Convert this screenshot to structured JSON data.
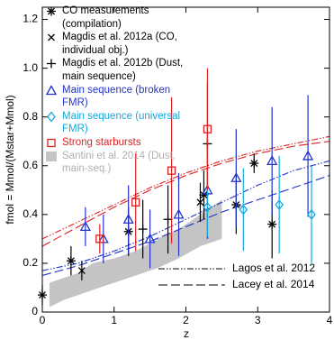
{
  "chart_data": {
    "type": "scatter",
    "x_label": "z",
    "y_label": "fmol = Mmol/(Mstar+Mmol)",
    "xlim": [
      0,
      4
    ],
    "ylim": [
      0,
      1.25
    ],
    "xticks": [
      0,
      1,
      2,
      3,
      4
    ],
    "yticks": [
      0,
      0.2,
      0.4,
      0.6,
      0.8,
      {
        "value": 1,
        "label": "1.0"
      },
      1.2
    ],
    "series": [
      {
        "name": "CO measurements (compilation)",
        "color": "#000000",
        "marker": "asterisk",
        "x": [
          0.0,
          0.4,
          1.2,
          2.25,
          2.7,
          2.95,
          3.2
        ],
        "values": [
          0.07,
          0.21,
          0.33,
          0.48,
          0.44,
          0.61,
          0.36
        ],
        "errors": [
          0.04,
          0.06,
          0.1,
          0.1,
          0.12,
          0.04,
          0.14
        ]
      },
      {
        "name": "Magdis et al. 2012a (CO, individual obj.)",
        "color": "#000000",
        "marker": "x",
        "x": [
          0.55,
          2.2
        ],
        "values": [
          0.17,
          0.45
        ],
        "errors": [
          0.04,
          0.08
        ]
      },
      {
        "name": "Magdis et al. 2012b (Dust, main sequence)",
        "color": "#000000",
        "marker": "plus",
        "x": [
          1.4,
          1.75,
          2.3
        ],
        "values": [
          0.34,
          0.38,
          0.69
        ],
        "errors": [
          0.12,
          0.14,
          0.25
        ]
      },
      {
        "name": "Main sequence (broken FMR)",
        "color": "#2233cc",
        "marker": "triangle",
        "x": [
          0.6,
          0.85,
          1.2,
          1.5,
          1.9,
          2.3,
          2.7,
          3.2,
          3.7
        ],
        "values": [
          0.35,
          0.3,
          0.38,
          0.3,
          0.4,
          0.5,
          0.55,
          0.62,
          0.64
        ],
        "errors": [
          0.08,
          0.1,
          0.14,
          0.12,
          0.17,
          0.2,
          0.2,
          0.22,
          0.25
        ]
      },
      {
        "name": "Main sequence (universal FMR)",
        "color": "#11aadd",
        "marker": "diamond",
        "x": [
          2.3,
          2.8,
          3.3,
          3.75
        ],
        "values": [
          0.43,
          0.42,
          0.44,
          0.4
        ],
        "errors": [
          0.12,
          0.17,
          0.2,
          0.2
        ]
      },
      {
        "name": "Strong starbursts",
        "color": "#dd2222",
        "marker": "square",
        "x": [
          0.8,
          1.3,
          1.8,
          2.3
        ],
        "values": [
          0.3,
          0.45,
          0.58,
          0.75
        ],
        "errors": [
          0.06,
          0.2,
          0.3,
          0.25
        ]
      }
    ],
    "area": {
      "name": "Santini et al. 2014 (Dust, main-seq.)",
      "color": "#c4c4c4",
      "x": [
        0.1,
        0.3,
        0.5,
        0.7,
        1.0,
        1.3,
        1.6,
        1.9,
        2.2,
        2.5
      ],
      "lower": [
        0.02,
        0.05,
        0.07,
        0.09,
        0.12,
        0.15,
        0.18,
        0.22,
        0.27,
        0.3
      ],
      "upper": [
        0.12,
        0.14,
        0.16,
        0.2,
        0.22,
        0.25,
        0.3,
        0.34,
        0.4,
        0.46
      ]
    },
    "model_x": [
      0,
      0.5,
      1,
      1.5,
      2,
      2.5,
      3,
      3.5,
      4
    ],
    "models": [
      {
        "name": "Lagos et al. 2012",
        "dash": "dash-dot-dot",
        "curves": [
          {
            "color": "#dd2222",
            "values": [
              0.3,
              0.37,
              0.44,
              0.51,
              0.57,
              0.62,
              0.66,
              0.69,
              0.72
            ]
          },
          {
            "color": "#2233cc",
            "values": [
              0.17,
              0.2,
              0.25,
              0.31,
              0.38,
              0.45,
              0.52,
              0.58,
              0.62
            ]
          }
        ]
      },
      {
        "name": "Lacey et al. 2014",
        "dash": "long-dash",
        "curves": [
          {
            "color": "#dd2222",
            "values": [
              0.27,
              0.35,
              0.43,
              0.5,
              0.56,
              0.61,
              0.65,
              0.68,
              0.7
            ]
          },
          {
            "color": "#2233cc",
            "values": [
              0.15,
              0.19,
              0.24,
              0.29,
              0.35,
              0.41,
              0.46,
              0.51,
              0.56
            ]
          }
        ]
      }
    ]
  }
}
